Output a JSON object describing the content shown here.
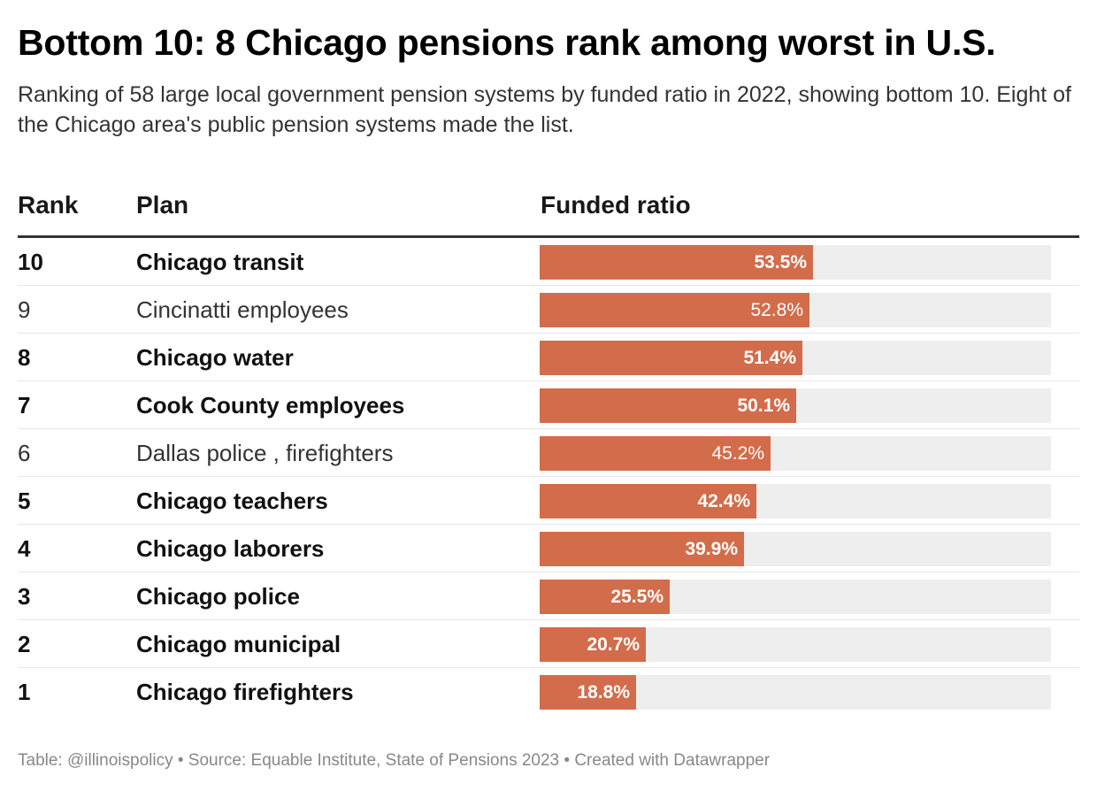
{
  "title": "Bottom 10: 8 Chicago pensions rank among worst in U.S.",
  "subtitle": "Ranking of 58 large local government pension systems by funded ratio in 2022, showing bottom 10. Eight of the Chicago area's public pension systems made the list.",
  "columns": {
    "rank": "Rank",
    "plan": "Plan",
    "ratio": "Funded ratio"
  },
  "footer": "Table: @illinoispolicy • Source: Equable Institute, State of Pensions 2023 • Created with Datawrapper",
  "colors": {
    "bar": "#d36c4a",
    "track": "#eeeeee"
  },
  "chart_data": {
    "type": "table",
    "max_value": 100,
    "rows": [
      {
        "rank": "10",
        "plan": "Chicago transit",
        "value": 53.5,
        "label": "53.5%",
        "bold": true
      },
      {
        "rank": "9",
        "plan": "Cincinatti employees",
        "value": 52.8,
        "label": "52.8%",
        "bold": false
      },
      {
        "rank": "8",
        "plan": "Chicago water",
        "value": 51.4,
        "label": "51.4%",
        "bold": true
      },
      {
        "rank": "7",
        "plan": "Cook County employees",
        "value": 50.1,
        "label": "50.1%",
        "bold": true
      },
      {
        "rank": "6",
        "plan": "Dallas police , firefighters",
        "value": 45.2,
        "label": "45.2%",
        "bold": false
      },
      {
        "rank": "5",
        "plan": "Chicago teachers",
        "value": 42.4,
        "label": "42.4%",
        "bold": true
      },
      {
        "rank": "4",
        "plan": "Chicago laborers",
        "value": 39.9,
        "label": "39.9%",
        "bold": true
      },
      {
        "rank": "3",
        "plan": "Chicago police",
        "value": 25.5,
        "label": "25.5%",
        "bold": true
      },
      {
        "rank": "2",
        "plan": "Chicago municipal",
        "value": 20.7,
        "label": "20.7%",
        "bold": true
      },
      {
        "rank": "1",
        "plan": "Chicago firefighters",
        "value": 18.8,
        "label": "18.8%",
        "bold": true
      }
    ]
  }
}
